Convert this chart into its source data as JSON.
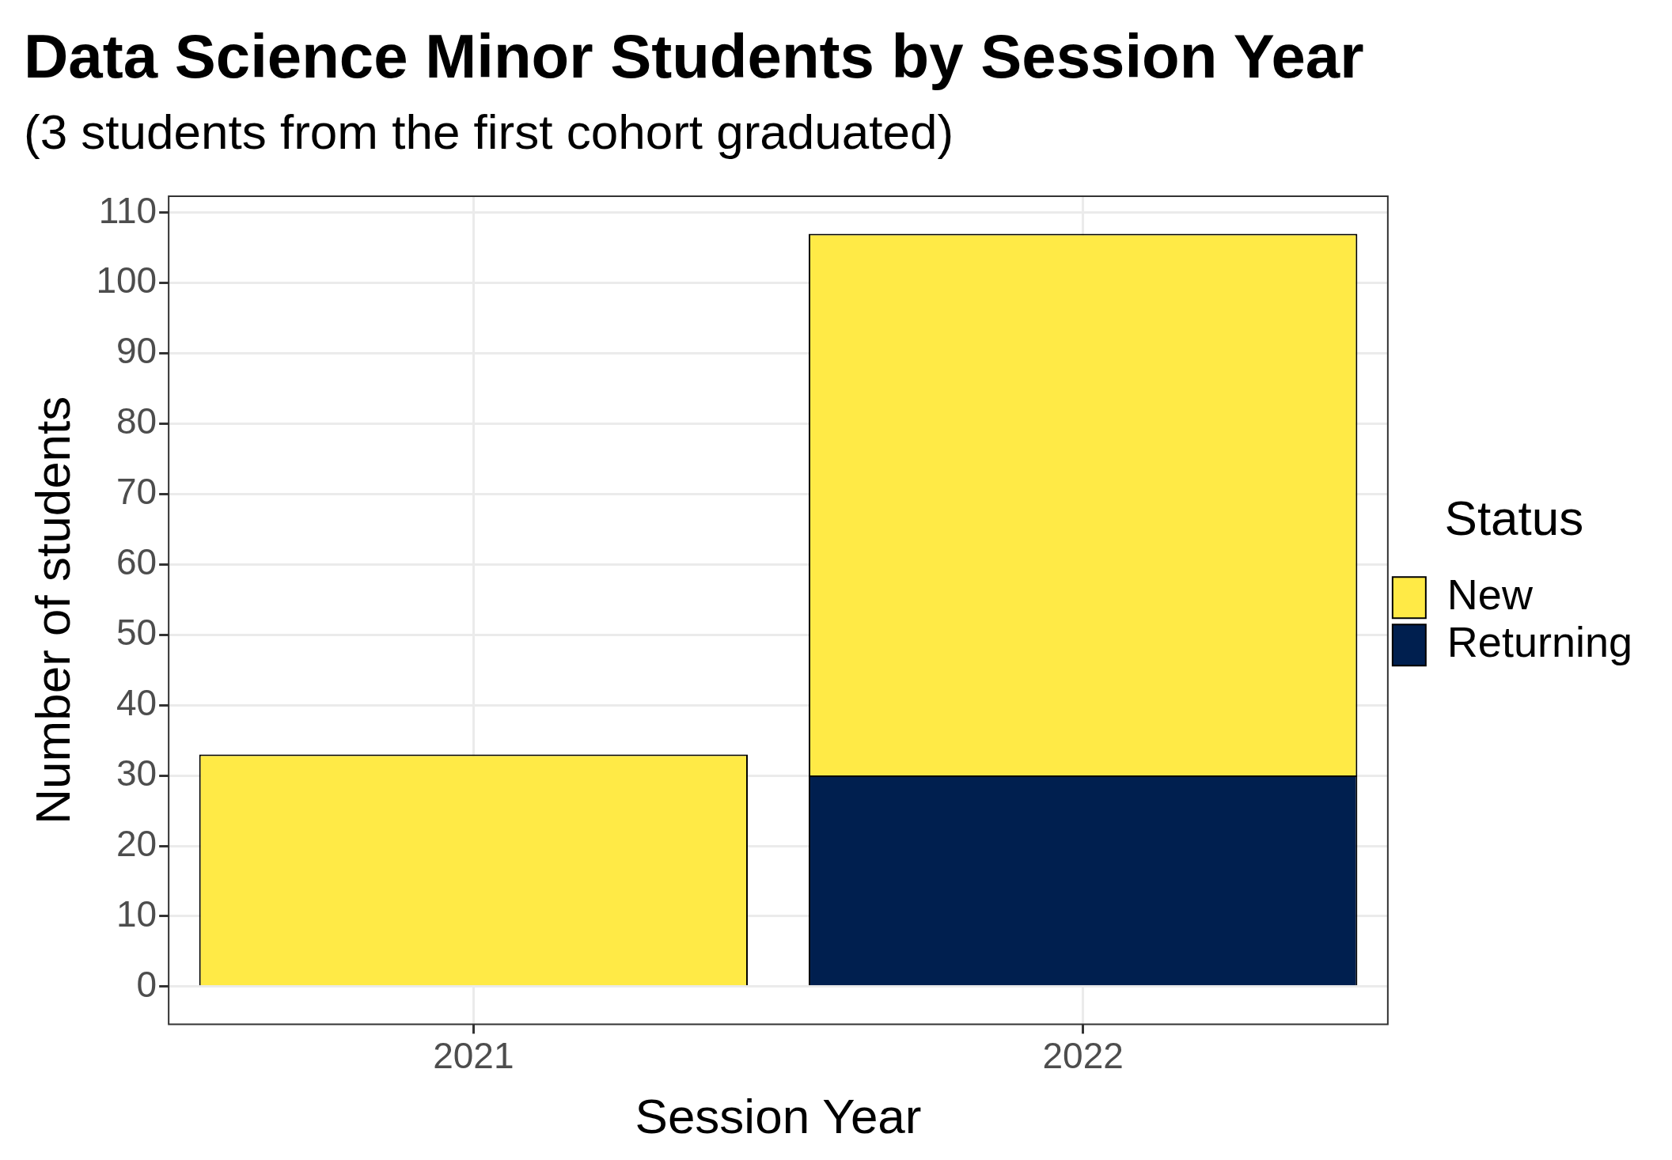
{
  "chart_data": {
    "type": "bar",
    "title": "Data Science Minor Students by Session Year",
    "subtitle": "(3 students from the first cohort graduated)",
    "xlabel": "Session Year",
    "ylabel": "Number of students",
    "legend_title": "Status",
    "categories": [
      "2021",
      "2022"
    ],
    "series": [
      {
        "name": "Returning",
        "color": "#001f4f",
        "values": [
          null,
          30
        ]
      },
      {
        "name": "New",
        "color": "#ffea46",
        "values": [
          33,
          77
        ]
      }
    ],
    "stacked": true,
    "ylim": [
      -5.35,
      112.35
    ],
    "yticks": [
      0,
      10,
      20,
      30,
      40,
      50,
      60,
      70,
      80,
      90,
      100,
      110
    ],
    "grid": true,
    "legend": "right"
  }
}
